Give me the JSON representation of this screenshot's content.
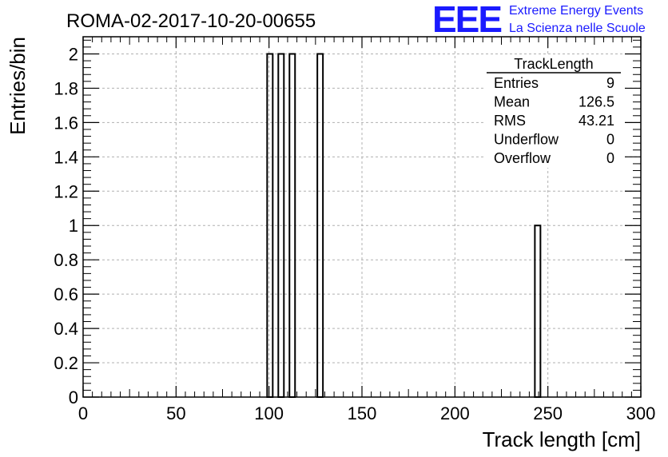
{
  "header": {
    "run_title": "ROMA-02-2017-10-20-00655",
    "logo_letters": "EEE",
    "logo_line1": "Extreme Energy Events",
    "logo_line2": "La Scienza nelle Scuole",
    "logo_color": "#1a1aff"
  },
  "stats": {
    "title": "TrackLength",
    "rows": [
      {
        "label": "Entries",
        "value": "9"
      },
      {
        "label": "Mean",
        "value": "126.5"
      },
      {
        "label": "RMS",
        "value": "43.21"
      },
      {
        "label": "Underflow",
        "value": "0"
      },
      {
        "label": "Overflow",
        "value": "0"
      }
    ]
  },
  "chart_data": {
    "type": "bar",
    "title": "ROMA-02-2017-10-20-00655",
    "xlabel": "Track length [cm]",
    "ylabel": "Entries/bin",
    "xlim": [
      0,
      300
    ],
    "ylim": [
      0,
      2.1
    ],
    "grid": true,
    "bin_width": 3,
    "bins": [
      {
        "x0": 99,
        "x1": 102,
        "count": 2
      },
      {
        "x0": 105,
        "x1": 108,
        "count": 2
      },
      {
        "x0": 111,
        "x1": 114,
        "count": 2
      },
      {
        "x0": 126,
        "x1": 129,
        "count": 2
      },
      {
        "x0": 243,
        "x1": 246,
        "count": 1
      }
    ],
    "x_ticks": [
      "0",
      "50",
      "100",
      "150",
      "200",
      "250",
      "300"
    ],
    "x_tick_values": [
      0,
      50,
      100,
      150,
      200,
      250,
      300
    ],
    "y_ticks": [
      "0",
      "0.2",
      "0.4",
      "0.6",
      "0.8",
      "1",
      "1.2",
      "1.4",
      "1.6",
      "1.8",
      "2"
    ],
    "y_tick_values": [
      0,
      0.2,
      0.4,
      0.6,
      0.8,
      1,
      1.2,
      1.4,
      1.6,
      1.8,
      2
    ]
  }
}
